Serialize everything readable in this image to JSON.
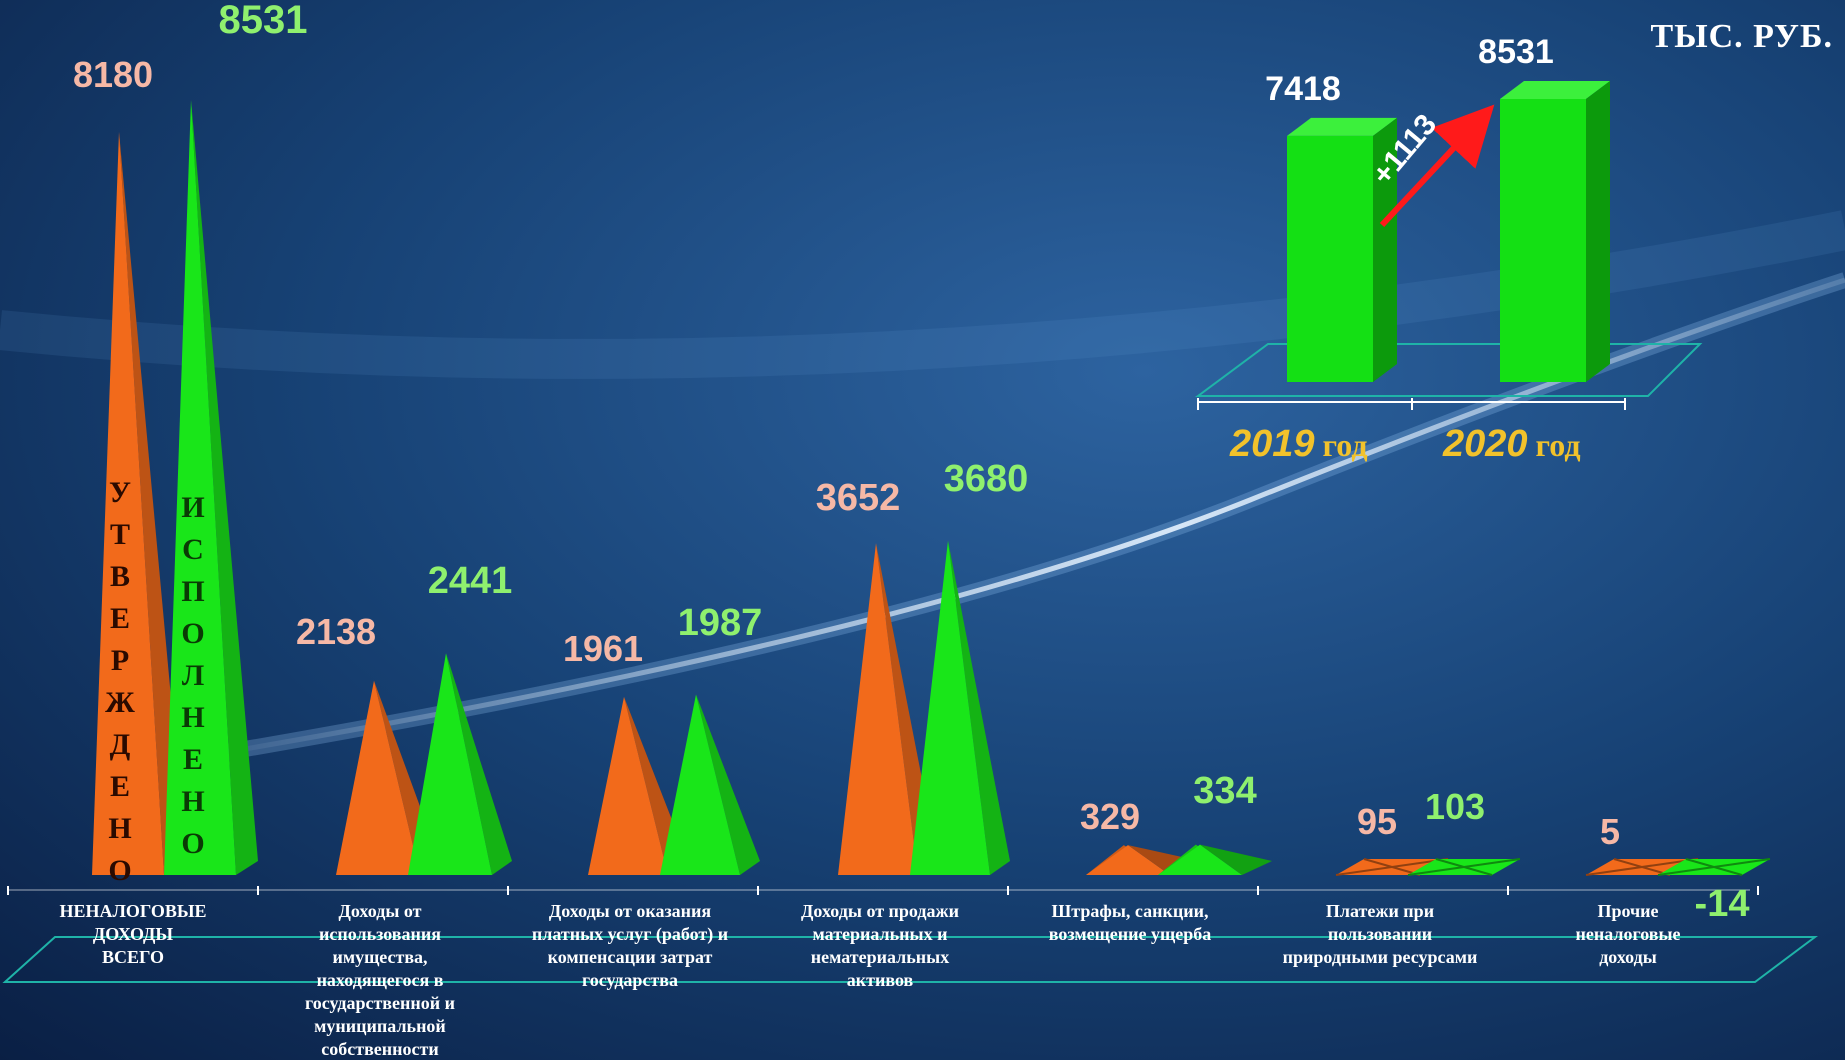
{
  "unit_label": "ТЫС. РУБ.",
  "vertical_labels": {
    "planned": "УТВЕРЖДЕНО",
    "actual": "ИСПОЛНЕНО"
  },
  "colors": {
    "planned": "#f26a1b",
    "actual": "#19e619",
    "planned_value_text": "#f6b8a6",
    "actual_value_text": "#8ff06e",
    "background": "#123a6b"
  },
  "chart_data": [
    {
      "type": "bar",
      "categories": [
        "НЕНАЛОГОВЫЕ ДОХОДЫ ВСЕГО",
        "Доходы от использования имущества, находящегося в государственной и муниципальной собственности",
        "Доходы от оказания платных услуг (работ) и компенсации затрат государства",
        "Доходы от продажи материальных и нематериальных активов",
        "Штрафы, санкции, возмещение ущерба",
        "Платежи при пользовании природными ресурсами",
        "Прочие неналоговые доходы"
      ],
      "category_labels": [
        [
          "НЕНАЛОГОВЫЕ",
          "ДОХОДЫ",
          "ВСЕГО"
        ],
        [
          "Доходы от",
          "использования",
          "имущества,",
          "находящегося в",
          "государственной и",
          "муниципальной",
          "собственности"
        ],
        [
          "Доходы от оказания",
          "платных услуг (работ) и",
          "компенсации затрат",
          "государства"
        ],
        [
          "Доходы от продажи",
          "материальных и",
          "нематериальных",
          "активов"
        ],
        [
          "Штрафы, санкции,",
          "возмещение ущерба"
        ],
        [
          "Платежи при",
          "пользовании",
          "природными ресурсами"
        ],
        [
          "Прочие",
          "неналоговые",
          "доходы"
        ]
      ],
      "series": [
        {
          "key": "planned",
          "values": [
            8180,
            2138,
            1961,
            3652,
            329,
            95,
            5
          ]
        },
        {
          "key": "actual",
          "values": [
            8531,
            2441,
            1987,
            3680,
            334,
            103,
            -14
          ]
        }
      ],
      "value_labels": {
        "planned": [
          "8180",
          "2138",
          "1961",
          "3652",
          "329",
          "95",
          "5"
        ],
        "actual": [
          "8531",
          "2441",
          "1987",
          "3680",
          "334",
          "103",
          "-14"
        ]
      }
    },
    {
      "type": "bar",
      "categories": [
        "2019",
        "2020"
      ],
      "category_suffix": "год",
      "values": [
        7418,
        8531
      ],
      "value_labels": [
        "7418",
        "8531"
      ],
      "change_label": "+1113"
    }
  ]
}
